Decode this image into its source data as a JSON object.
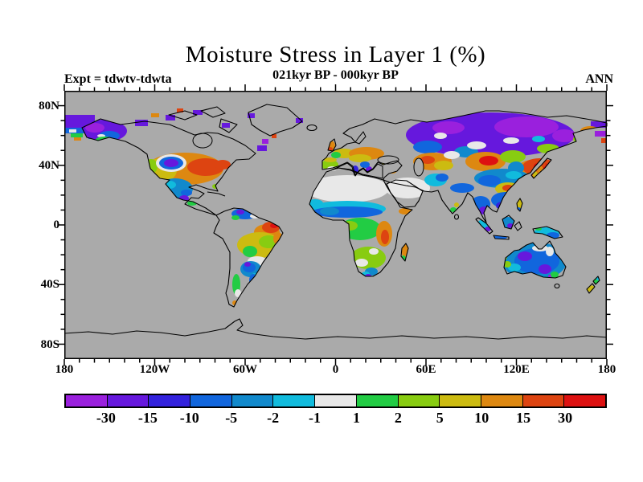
{
  "header": {
    "title": "Moisture Stress in Layer 1 (%)",
    "subtitle": "021kyr BP - 000kyr BP",
    "experiment_label": "Expt = tdwtv-tdwta",
    "season_label": "ANN"
  },
  "map": {
    "lat_tick_labels": [
      "80N",
      "40N",
      "0",
      "40S",
      "80S"
    ],
    "lon_tick_labels": [
      "180",
      "120W",
      "60W",
      "0",
      "60E",
      "120E",
      "180"
    ],
    "background_color": "#aaaaaa",
    "coastline_color": "#000000",
    "frame_color": "#000000"
  },
  "chart_data": {
    "type": "heatmap",
    "title": "Moisture Stress in Layer 1 (%)",
    "subtitle": "021kyr BP - 000kyr BP",
    "experiment": "Expt = tdwtv-tdwta",
    "season": "ANN",
    "projection": "global cylindrical lat-lon map, 90N-90S, 180W-180E",
    "lat_ticks": [
      "80N",
      "40N",
      "0",
      "40S",
      "80S"
    ],
    "lon_ticks": [
      "180",
      "120W",
      "60W",
      "0",
      "60E",
      "120E",
      "180"
    ],
    "colorbar": {
      "levels": [
        "-30",
        "-15",
        "-10",
        "-5",
        "-2",
        "-1",
        "1",
        "2",
        "5",
        "10",
        "15",
        "30"
      ],
      "colors": [
        "#9a20dd",
        "#6618dd",
        "#3322dd",
        "#1166dd",
        "#1189cc",
        "#11bbdd",
        "#e8e8e8",
        "#22cc44",
        "#88cc11",
        "#ccbb11",
        "#dd8811",
        "#dd4411",
        "#dd1111"
      ],
      "units": "%"
    },
    "regions": [
      {
        "region": "Alaska",
        "value": "-30 to -15, small +10 to +15 strip on south coast"
      },
      {
        "region": "Canada / Greenland interior / Scandinavia",
        "value": "no data (gray mask), scattered -30 to -15 cells at edges"
      },
      {
        "region": "Western-central United States",
        "value": "+10 to +30 ring with -30 to -15 core over Rockies"
      },
      {
        "region": "Mexico / Texas",
        "value": "-5 to -2"
      },
      {
        "region": "Northern South America",
        "value": "-10 to -5"
      },
      {
        "region": "Northeast Brazil",
        "value": "+15 to over +30"
      },
      {
        "region": "Central Brazil",
        "value": "+2 to +10"
      },
      {
        "region": "Patagonia / Argentina",
        "value": "-10 to -2"
      },
      {
        "region": "Southern Chile",
        "value": "+1 to +2"
      },
      {
        "region": "British Isles",
        "value": "+10 to +30"
      },
      {
        "region": "Central / Eastern Europe",
        "value": "+5 to +15"
      },
      {
        "region": "Iberia",
        "value": "+2 to +5"
      },
      {
        "region": "Italy / Greece",
        "value": "-15 to -10"
      },
      {
        "region": "Sahara / Middle East",
        "value": "-1 to +1"
      },
      {
        "region": "Sahel",
        "value": "-10 to -5"
      },
      {
        "region": "Central Africa",
        "value": "+1 to +2"
      },
      {
        "region": "East Africa",
        "value": "+15 to +30"
      },
      {
        "region": "Southern Africa",
        "value": "+2 to +5 with -5 to -2 patches"
      },
      {
        "region": "Madagascar",
        "value": "+10 to +15"
      },
      {
        "region": "Northern Siberia",
        "value": "-30 and below"
      },
      {
        "region": "Kazakhstan / Central Asia",
        "value": "+10 to +30"
      },
      {
        "region": "Mongolia / Northeast China",
        "value": "+15 to over +30"
      },
      {
        "region": "Tibet / Western China",
        "value": "-5 to -2"
      },
      {
        "region": "Southern China / Southeast Asia",
        "value": "-10 to -5"
      },
      {
        "region": "India",
        "value": "mostly no data; -10 to -5 north, +1 to +5 far south"
      },
      {
        "region": "Indonesia / New Guinea",
        "value": "-5 to -1 with -30 to -15 patches"
      },
      {
        "region": "Australia",
        "value": "-10 to -2 with -30 to -15 patches, +2 to +5 coastal spots"
      },
      {
        "region": "New Zealand",
        "value": "+5 to +10 south, +1 to +2 north"
      }
    ]
  }
}
